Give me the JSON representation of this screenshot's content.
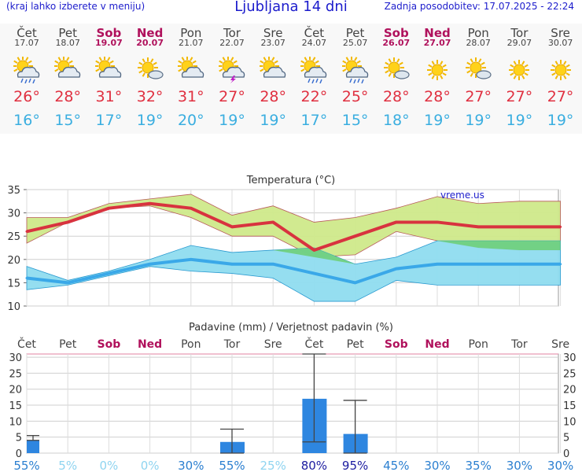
{
  "header": {
    "menu_hint": "(kraj lahko izberete v meniju)",
    "title": "Ljubljana 14 dni",
    "updated": "Zadnja posodobitev: 17.07.2025 - 22:24"
  },
  "days": [
    {
      "name": "Čet",
      "date": "17.07",
      "weekend": false,
      "icon": "sun-cloud-rain-icon",
      "max": "26°",
      "min": "16°"
    },
    {
      "name": "Pet",
      "date": "18.07",
      "weekend": false,
      "icon": "sun-cloud-icon",
      "max": "28°",
      "min": "15°"
    },
    {
      "name": "Sob",
      "date": "19.07",
      "weekend": true,
      "icon": "sun-cloud-icon",
      "max": "31°",
      "min": "17°"
    },
    {
      "name": "Ned",
      "date": "20.07",
      "weekend": true,
      "icon": "sun-small-cloud-icon",
      "max": "32°",
      "min": "19°"
    },
    {
      "name": "Pon",
      "date": "21.07",
      "weekend": false,
      "icon": "sun-cloud-icon",
      "max": "31°",
      "min": "20°"
    },
    {
      "name": "Tor",
      "date": "22.07",
      "weekend": false,
      "icon": "sun-cloud-storm-icon",
      "max": "27°",
      "min": "19°"
    },
    {
      "name": "Sre",
      "date": "23.07",
      "weekend": false,
      "icon": "sun-cloud-icon",
      "max": "28°",
      "min": "19°"
    },
    {
      "name": "Čet",
      "date": "24.07",
      "weekend": false,
      "icon": "sun-cloud-rain-icon",
      "max": "22°",
      "min": "17°"
    },
    {
      "name": "Pet",
      "date": "25.07",
      "weekend": false,
      "icon": "sun-cloud-rain-icon",
      "max": "25°",
      "min": "15°"
    },
    {
      "name": "Sob",
      "date": "26.07",
      "weekend": true,
      "icon": "sun-small-cloud-icon",
      "max": "28°",
      "min": "18°"
    },
    {
      "name": "Ned",
      "date": "27.07",
      "weekend": true,
      "icon": "sun-icon",
      "max": "28°",
      "min": "19°"
    },
    {
      "name": "Pon",
      "date": "28.07",
      "weekend": false,
      "icon": "sun-small-cloud-icon",
      "max": "27°",
      "min": "19°"
    },
    {
      "name": "Tor",
      "date": "29.07",
      "weekend": false,
      "icon": "sun-icon",
      "max": "27°",
      "min": "19°"
    },
    {
      "name": "Sre",
      "date": "30.07",
      "weekend": false,
      "icon": "sun-icon",
      "max": "27°",
      "min": "19°"
    }
  ],
  "colors": {
    "max_temp": "#e03040",
    "min_temp": "#3aaee0",
    "max_line": "#d8333f",
    "min_line": "#3aa8e8",
    "max_band": "#cfe98a",
    "min_band": "#8fdcef",
    "overlap": "#6fcf7a",
    "weekend": "#b0115c",
    "bar": "#2e86e0",
    "prob_high": "#1c1ca0",
    "prob_mid": "#2b7fd0",
    "prob_low": "#8fd4f0"
  },
  "chart_data": [
    {
      "type": "line",
      "title": "Temperatura (°C)",
      "watermark": "vreme.us",
      "x": [
        "Čet",
        "Pet",
        "Sob",
        "Ned",
        "Pon",
        "Tor",
        "Sre",
        "Čet",
        "Pet",
        "Sob",
        "Ned",
        "Pon",
        "Tor",
        "Sre"
      ],
      "ylim": [
        10,
        35
      ],
      "yticks": [
        10,
        15,
        20,
        25,
        30,
        35
      ],
      "grid": true,
      "series": [
        {
          "name": "max",
          "values": [
            26,
            28,
            31,
            32,
            31,
            27,
            28,
            22,
            25,
            28,
            28,
            27,
            27,
            27
          ]
        },
        {
          "name": "max_high",
          "values": [
            29,
            29,
            32,
            33,
            34,
            29.5,
            31.5,
            28,
            29,
            31,
            33.5,
            32,
            32.5,
            32.5
          ]
        },
        {
          "name": "max_low",
          "values": [
            23.5,
            28,
            31,
            31.5,
            29,
            25,
            25,
            20.5,
            21,
            26,
            24,
            22.5,
            22,
            22
          ]
        },
        {
          "name": "min",
          "values": [
            16,
            15,
            17,
            19,
            20,
            19,
            19,
            17,
            15,
            18,
            19,
            19,
            19,
            19
          ]
        },
        {
          "name": "min_high",
          "values": [
            18.5,
            15.5,
            17.5,
            20,
            23,
            21.5,
            22,
            22.5,
            19,
            20.5,
            24,
            24,
            24,
            24
          ]
        },
        {
          "name": "min_low",
          "values": [
            13.5,
            14.5,
            16.5,
            18.5,
            17.5,
            17,
            16,
            11,
            11,
            15.5,
            14.5,
            14.5,
            14.5,
            14.5
          ]
        }
      ]
    },
    {
      "type": "bar",
      "title": "Padavine (mm) / Verjetnost padavin (%)",
      "x": [
        "Čet",
        "Pet",
        "Sob",
        "Ned",
        "Pon",
        "Tor",
        "Sre",
        "Čet",
        "Pet",
        "Sob",
        "Ned",
        "Pon",
        "Tor",
        "Sre"
      ],
      "ylim": [
        0,
        31
      ],
      "yticks": [
        0,
        5,
        10,
        15,
        20,
        25,
        30
      ],
      "values": [
        4,
        0,
        0,
        0,
        0,
        3.5,
        0,
        17,
        6,
        0,
        0,
        0,
        0,
        0
      ],
      "error_low": [
        4,
        0,
        0,
        0,
        0,
        0,
        0,
        3.5,
        0,
        0,
        0,
        0,
        0,
        0
      ],
      "error_high": [
        5.5,
        0,
        0,
        0,
        0,
        7.5,
        0,
        31,
        16.5,
        0,
        0,
        0,
        0,
        0
      ],
      "probabilities": [
        "55%",
        "5%",
        "0%",
        "0%",
        "30%",
        "55%",
        "25%",
        "80%",
        "95%",
        "45%",
        "30%",
        "35%",
        "30%",
        "30%"
      ]
    }
  ]
}
